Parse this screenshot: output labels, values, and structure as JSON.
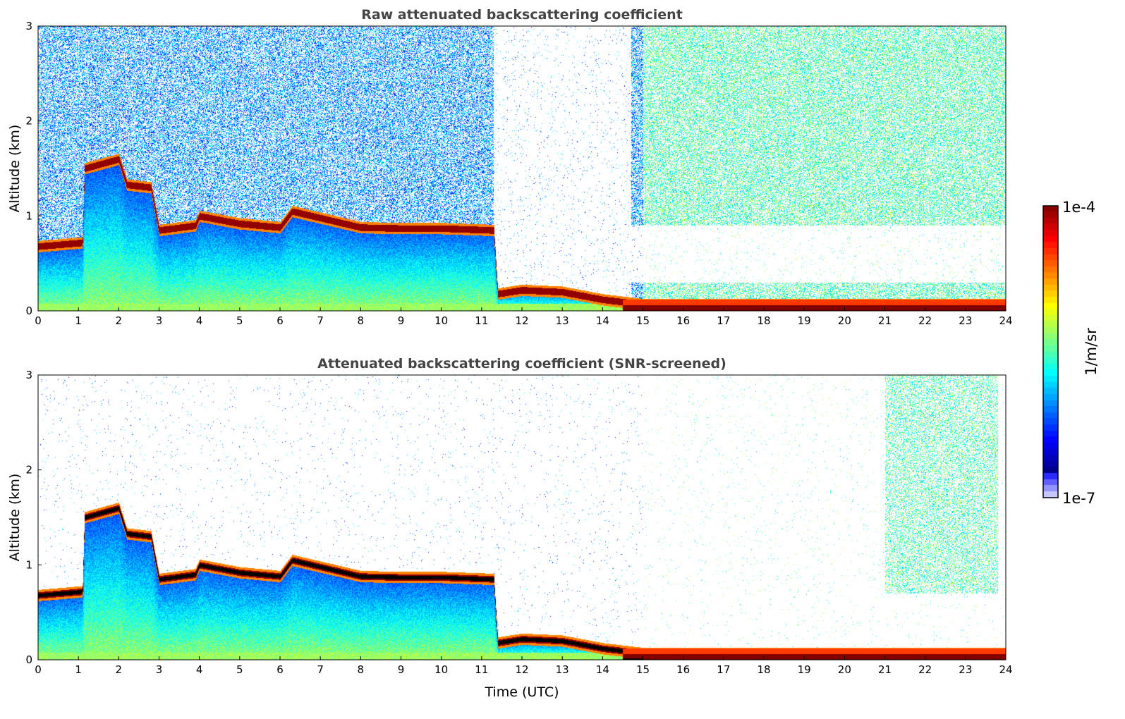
{
  "chart_data": [
    {
      "type": "heatmap",
      "title": "Raw attenuated backscattering coefficient",
      "xlabel": "",
      "ylabel": "Altitude (km)",
      "xlim": [
        0,
        24
      ],
      "ylim": [
        0,
        3
      ],
      "xticks": [
        "0",
        "1",
        "2",
        "3",
        "4",
        "5",
        "6",
        "7",
        "8",
        "9",
        "10",
        "11",
        "12",
        "13",
        "14",
        "15",
        "16",
        "17",
        "18",
        "19",
        "20",
        "21",
        "22",
        "23",
        "24"
      ],
      "yticks": [
        "0",
        "1",
        "2",
        "3"
      ],
      "screened": false
    },
    {
      "type": "heatmap",
      "title": "Attenuated backscattering coefficient (SNR-screened)",
      "xlabel": "Time (UTC)",
      "ylabel": "Altitude (km)",
      "xlim": [
        0,
        24
      ],
      "ylim": [
        0,
        3
      ],
      "xticks": [
        "0",
        "1",
        "2",
        "3",
        "4",
        "5",
        "6",
        "7",
        "8",
        "9",
        "10",
        "11",
        "12",
        "13",
        "14",
        "15",
        "16",
        "17",
        "18",
        "19",
        "20",
        "21",
        "22",
        "23",
        "24"
      ],
      "yticks": [
        "0",
        "1",
        "2",
        "3"
      ],
      "screened": true
    }
  ],
  "layer_top_km": {
    "time_utc": [
      0,
      1.1,
      1.15,
      2.0,
      2.2,
      2.8,
      3.0,
      3.9,
      4.0,
      5.0,
      6.0,
      6.3,
      7.0,
      8.0,
      9.0,
      10.0,
      11.3,
      11.4,
      12.0,
      13.0,
      14.0,
      15.0,
      24
    ],
    "altitude": [
      0.68,
      0.72,
      1.5,
      1.6,
      1.33,
      1.3,
      0.85,
      0.9,
      1.0,
      0.92,
      0.88,
      1.05,
      0.98,
      0.88,
      0.87,
      0.87,
      0.85,
      0.18,
      0.22,
      0.2,
      0.12,
      0.07,
      0.07
    ]
  },
  "colorbar": {
    "label": "1/m/sr",
    "max_label": "1e-4",
    "min_label": "1e-7",
    "range_log10": [
      -7,
      -4
    ],
    "colormap": "jet"
  }
}
